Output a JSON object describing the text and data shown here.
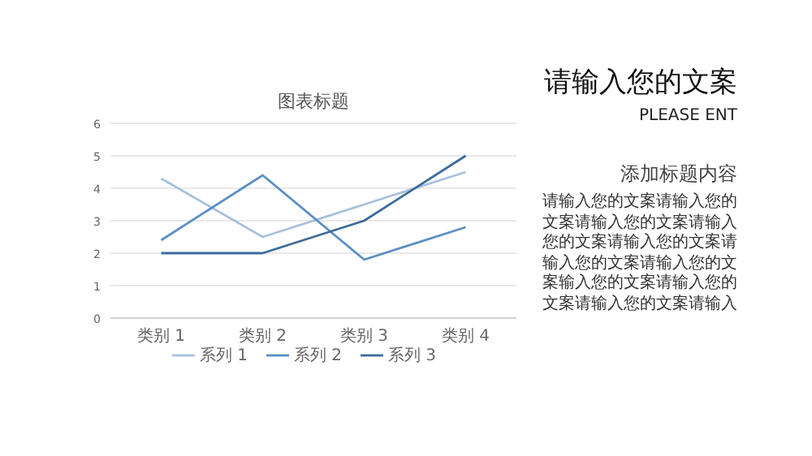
{
  "chart_data": [
    {
      "type": "line",
      "title": "图表标题",
      "categories": [
        "类别 1",
        "类别 2",
        "类别 3",
        "类别 4"
      ],
      "series": [
        {
          "name": "系列 1",
          "color": "#a9c0dc",
          "values": [
            4.3,
            2.5,
            3.5,
            4.5
          ]
        },
        {
          "name": "系列 2",
          "color": "#5b8fc4",
          "values": [
            2.4,
            4.4,
            1.8,
            2.8
          ]
        },
        {
          "name": "系列 3",
          "color": "#3c6c9c",
          "values": [
            2,
            2,
            3,
            5
          ]
        }
      ],
      "ylim": [
        0,
        6
      ],
      "yticks": [
        0,
        1,
        2,
        3,
        4,
        5,
        6
      ],
      "grid": "y",
      "legend": "bottom",
      "marker": "none",
      "line_style": "solid"
    },
    {
      "type": "other",
      "title": "请输入您的文案",
      "subtitle": "PLEASE ENT",
      "annotations": [
        "添加标题内容",
        "请输入您的文案请输入您的文案请输入您的文案请输入",
        "您的文案请输入您的文案请输入您的文案请输入您的文案输入您的文案请输入您的文案请输入您的文案请输入"
      ]
    }
  ]
}
